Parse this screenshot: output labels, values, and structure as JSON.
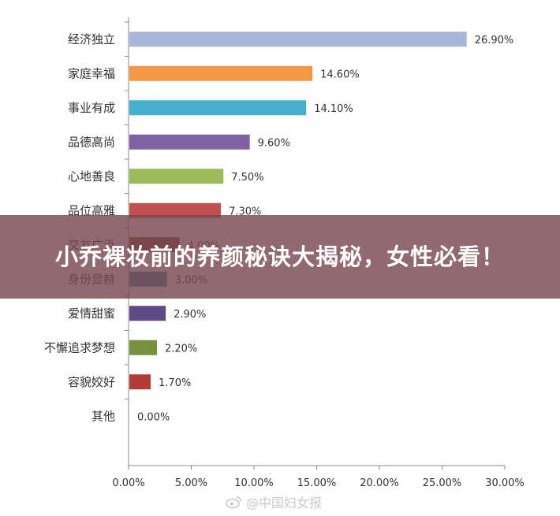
{
  "chart_data": {
    "type": "bar",
    "orientation": "horizontal",
    "categories": [
      "经济独立",
      "家庭幸福",
      "事业有成",
      "品德高尚",
      "心地善良",
      "品位高雅",
      "交友广泛",
      "身份显赫",
      "爱情甜蜜",
      "不懈追求梦想",
      "容貌姣好",
      "其他"
    ],
    "values": [
      26.9,
      14.6,
      14.1,
      9.6,
      7.5,
      7.3,
      4.0,
      3.0,
      2.9,
      2.2,
      1.7,
      0.0
    ],
    "value_labels": [
      "26.90%",
      "14.60%",
      "14.10%",
      "9.60%",
      "7.50%",
      "7.30%",
      "4.00%",
      "3.00%",
      "2.90%",
      "2.20%",
      "1.70%",
      "0.00%"
    ],
    "colors": [
      "#a7b6d9",
      "#f59845",
      "#44b0cb",
      "#7e62a3",
      "#9bbb59",
      "#c0504d",
      "#8b3d33",
      "#31859c",
      "#5f4a86",
      "#76923c",
      "#b23b36",
      "#4f81bd"
    ],
    "xlim": [
      0,
      30
    ],
    "x_ticks": [
      "0.00%",
      "5.00%",
      "10.00%",
      "15.00%",
      "20.00%",
      "25.00%",
      "30.00%"
    ],
    "grid": false,
    "legend": "none"
  },
  "banner": {
    "text": "小乔裸妆前的养颜秘诀大揭秘，女性必看！"
  },
  "watermark": {
    "text": "@中国妇女报",
    "icon": "weibo-icon"
  }
}
